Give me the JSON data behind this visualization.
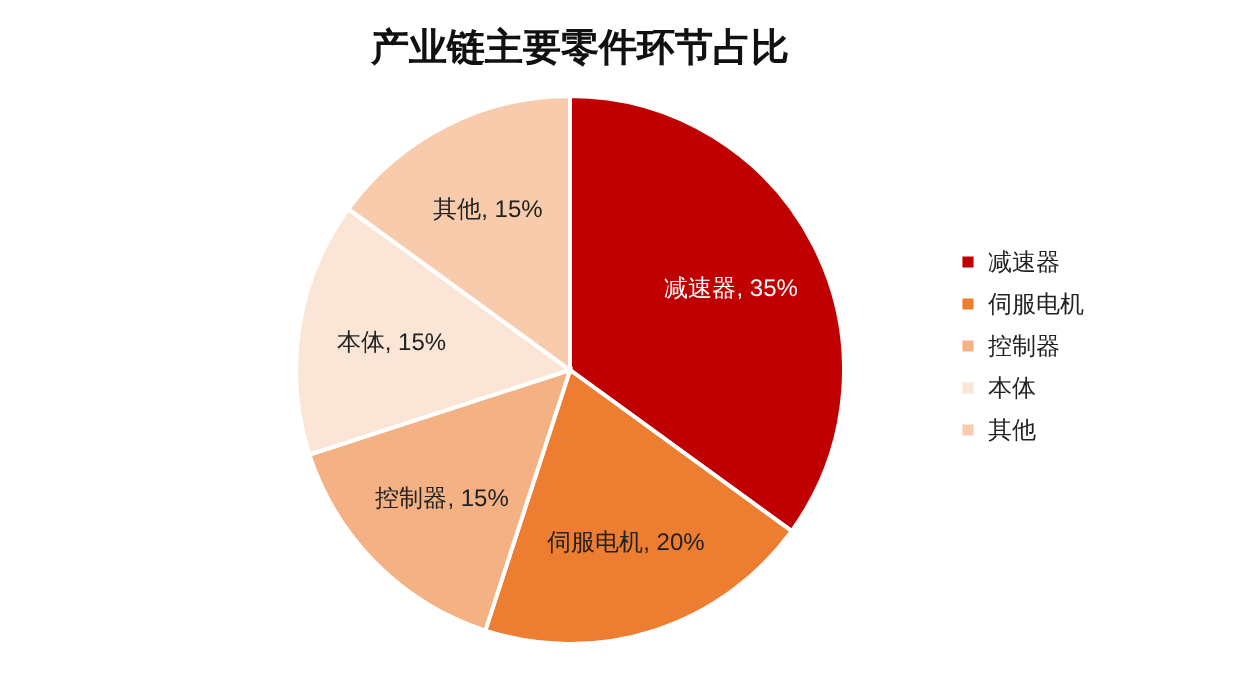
{
  "chart_data": {
    "type": "pie",
    "title": "产业链主要零件环节占比",
    "categories": [
      "减速器",
      "伺服电机",
      "控制器",
      "本体",
      "其他"
    ],
    "values": [
      35,
      20,
      15,
      15,
      15
    ],
    "colors": [
      "#c00000",
      "#ed7d31",
      "#f4b183",
      "#fbe5d6",
      "#f8cbad"
    ],
    "value_labels": [
      "减速器, 35%",
      "伺服电机, 20%",
      "控制器, 15%",
      "本体, 15%",
      "其他, 15%"
    ],
    "legend": "right"
  }
}
